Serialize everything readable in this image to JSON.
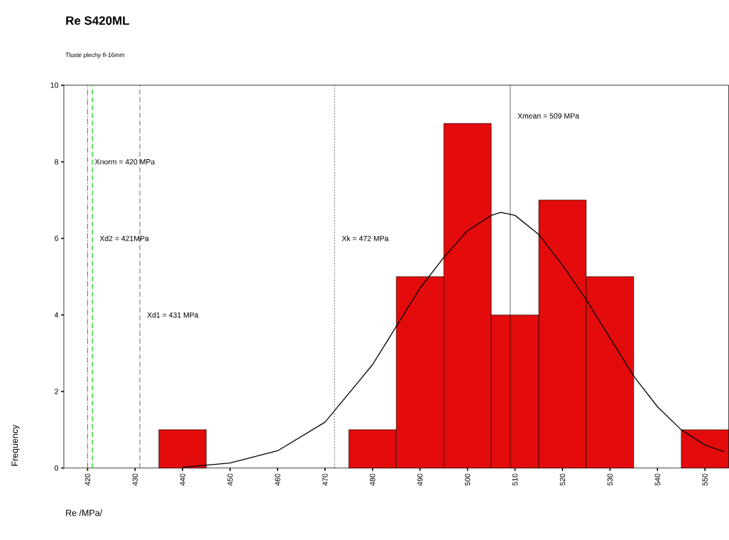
{
  "chart_data": {
    "type": "histogram",
    "title": "Re S420ML",
    "subtitle": "Tlusté plechy 8-16mm",
    "xlabel": "Re /MPa/",
    "ylabel": "Frequency",
    "bins": [
      435,
      445,
      455,
      465,
      475,
      485,
      495,
      505,
      515,
      525,
      535,
      545,
      555
    ],
    "values": [
      1,
      0,
      0,
      0,
      1,
      5,
      9,
      4,
      7,
      5,
      0,
      1
    ],
    "color": "#e30b0b",
    "series": [
      {
        "type": "line",
        "color": "#000000",
        "x": [
          440,
          450,
          460,
          470,
          480,
          485,
          490,
          495,
          500,
          505,
          507,
          510,
          515,
          520,
          525,
          530,
          535,
          540,
          545,
          550,
          554
        ],
        "values": [
          0.02,
          0.13,
          0.45,
          1.2,
          2.7,
          3.7,
          4.7,
          5.5,
          6.2,
          6.6,
          6.68,
          6.6,
          6.1,
          5.3,
          4.4,
          3.4,
          2.4,
          1.6,
          1.0,
          0.6,
          0.43
        ]
      }
    ],
    "ref_lines": [
      {
        "axis": "x",
        "value": 420,
        "label": "Xnorm = 420 MPa",
        "color": "#000000",
        "line_style": "dashdot"
      },
      {
        "axis": "x",
        "value": 421,
        "label": "Xd2 = 421MPa",
        "color": "#22dd22",
        "line_style": "dashed"
      },
      {
        "axis": "x",
        "value": 431,
        "label": "Xd1 = 431 MPa",
        "color": "#000000",
        "line_style": "dashed"
      },
      {
        "axis": "x",
        "value": 472,
        "label": "Xk = 472 MPa",
        "color": "#000000",
        "line_style": "dotted"
      },
      {
        "axis": "x",
        "value": 509,
        "label": "Xmean = 509 MPa",
        "color": "#000000",
        "line_style": "solid"
      }
    ],
    "xlim": [
      415,
      555
    ],
    "ylim": [
      0,
      10
    ],
    "xticks": [
      420,
      430,
      440,
      450,
      460,
      470,
      480,
      490,
      500,
      510,
      520,
      530,
      540,
      550
    ],
    "yticks": [
      0,
      2,
      4,
      6,
      8,
      10
    ],
    "grid": false
  }
}
